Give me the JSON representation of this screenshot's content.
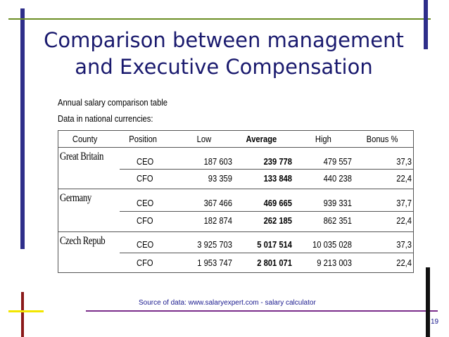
{
  "title_line1": "Comparison between management",
  "title_line2": "and Executive Compensation",
  "caption_line1": "Annual salary comparison table",
  "caption_line2": "Data in national currencies:",
  "headers": {
    "country": "County",
    "position": "Position",
    "low": "Low",
    "average": "Average",
    "high": "High",
    "bonus": "Bonus %"
  },
  "countries": [
    {
      "name": "Great Britain",
      "rows": [
        {
          "position": "CEO",
          "low": "187 603",
          "average": "239 778",
          "high": "479 557",
          "bonus": "37,3"
        },
        {
          "position": "CFO",
          "low": "93 359",
          "average": "133 848",
          "high": "440 238",
          "bonus": "22,4"
        }
      ]
    },
    {
      "name": "Germany",
      "rows": [
        {
          "position": "CEO",
          "low": "367 466",
          "average": "469 665",
          "high": "939 331",
          "bonus": "37,7"
        },
        {
          "position": "CFO",
          "low": "182 874",
          "average": "262 185",
          "high": "862 351",
          "bonus": "22,4"
        }
      ]
    },
    {
      "name": "Czech Repub",
      "rows": [
        {
          "position": "CEO",
          "low": "3 925 703",
          "average": "5 017 514",
          "high": "10 035 028",
          "bonus": "37,3"
        },
        {
          "position": "CFO",
          "low": "1 953 747",
          "average": "2 801 071",
          "high": "9 213 003",
          "bonus": "22,4"
        }
      ]
    }
  ],
  "source": "Source of data: www.salaryexpert.com - salary calculator",
  "page_number": "19",
  "colors": {
    "title": "#1a1a6e",
    "bar_blue": "#2e2e8a",
    "line_green": "#6b8e23",
    "bar_red": "#8b1a1a",
    "line_yellow": "#f2e600",
    "line_purple": "#7b2d8b",
    "bar_black": "#111111"
  }
}
